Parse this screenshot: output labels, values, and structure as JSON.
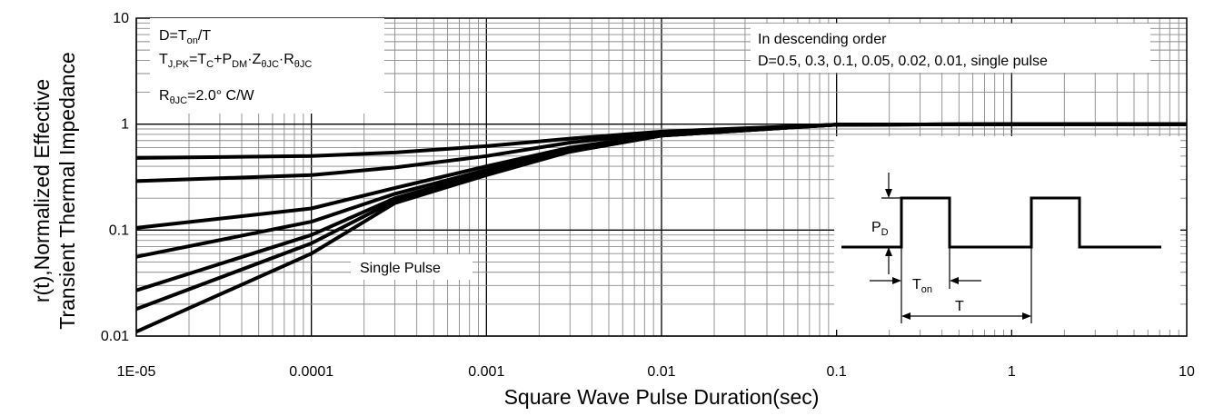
{
  "chart_data": {
    "type": "line",
    "xlabel": "Square Wave Pulse Duration(sec)",
    "ylabel_lines": [
      "r(t),Normalized Effective",
      "Transient Thermal Impedance"
    ],
    "x_scale": "log",
    "y_scale": "log",
    "xlim": [
      1e-05,
      10
    ],
    "ylim": [
      0.01,
      10
    ],
    "x_ticks": [
      {
        "value": 1e-05,
        "label": "1E-05"
      },
      {
        "value": 0.0001,
        "label": "0.0001"
      },
      {
        "value": 0.001,
        "label": "0.001"
      },
      {
        "value": 0.01,
        "label": "0.01"
      },
      {
        "value": 0.1,
        "label": "0.1"
      },
      {
        "value": 1,
        "label": "1"
      },
      {
        "value": 10,
        "label": "10"
      }
    ],
    "y_ticks": [
      {
        "value": 0.01,
        "label": "0.01"
      },
      {
        "value": 0.1,
        "label": "0.1"
      },
      {
        "value": 1,
        "label": "1"
      },
      {
        "value": 10,
        "label": "10"
      }
    ],
    "grid": true,
    "series": [
      {
        "name": "D=0.5",
        "x": [
          1e-05,
          0.0001,
          0.0003,
          0.001,
          0.003,
          0.01,
          0.1,
          1,
          10
        ],
        "y": [
          0.48,
          0.5,
          0.54,
          0.62,
          0.73,
          0.85,
          0.99,
          1.0,
          1.0
        ]
      },
      {
        "name": "D=0.3",
        "x": [
          1e-05,
          0.0001,
          0.0003,
          0.001,
          0.003,
          0.01,
          0.1,
          1,
          10
        ],
        "y": [
          0.29,
          0.33,
          0.39,
          0.5,
          0.67,
          0.83,
          0.99,
          1.0,
          1.0
        ]
      },
      {
        "name": "D=0.1",
        "x": [
          1e-05,
          0.0001,
          0.0003,
          0.001,
          0.003,
          0.01,
          0.1,
          1,
          10
        ],
        "y": [
          0.105,
          0.16,
          0.25,
          0.4,
          0.6,
          0.8,
          0.99,
          1.0,
          1.0
        ]
      },
      {
        "name": "D=0.05",
        "x": [
          1e-05,
          0.0001,
          0.0003,
          0.001,
          0.003,
          0.01,
          0.1,
          1,
          10
        ],
        "y": [
          0.056,
          0.12,
          0.22,
          0.37,
          0.58,
          0.79,
          0.99,
          1.0,
          1.0
        ]
      },
      {
        "name": "D=0.02",
        "x": [
          1e-05,
          0.0001,
          0.0003,
          0.001,
          0.003,
          0.01,
          0.1,
          1,
          10
        ],
        "y": [
          0.027,
          0.09,
          0.2,
          0.35,
          0.56,
          0.78,
          0.99,
          1.0,
          1.0
        ]
      },
      {
        "name": "D=0.01",
        "x": [
          1e-05,
          0.0001,
          0.0003,
          0.001,
          0.003,
          0.01,
          0.1,
          1,
          10
        ],
        "y": [
          0.018,
          0.075,
          0.19,
          0.34,
          0.55,
          0.78,
          0.99,
          1.0,
          1.0
        ]
      },
      {
        "name": "single pulse",
        "x": [
          1e-05,
          0.0001,
          0.0003,
          0.001,
          0.003,
          0.01,
          0.1,
          1,
          10
        ],
        "y": [
          0.011,
          0.06,
          0.18,
          0.33,
          0.55,
          0.78,
          0.99,
          1.0,
          1.0
        ]
      }
    ],
    "annotations": {
      "formula_box": {
        "lines": [
          [
            {
              "t": "D=T",
              "sub": false
            },
            {
              "t": "on",
              "sub": true
            },
            {
              "t": "/T",
              "sub": false
            }
          ],
          [
            {
              "t": "T",
              "sub": false
            },
            {
              "t": "J,PK",
              "sub": true
            },
            {
              "t": "=T",
              "sub": false
            },
            {
              "t": "C",
              "sub": true
            },
            {
              "t": "+P",
              "sub": false
            },
            {
              "t": "DM",
              "sub": true
            },
            {
              "t": "·Z",
              "sub": false
            },
            {
              "t": "θJC",
              "sub": true
            },
            {
              "t": "·R",
              "sub": false
            },
            {
              "t": "θJC",
              "sub": true
            }
          ],
          [
            {
              "t": "R",
              "sub": false
            },
            {
              "t": "θJC",
              "sub": true
            },
            {
              "t": "=2.0°  C/W",
              "sub": false
            }
          ]
        ]
      },
      "order_note": [
        "In descending order",
        "D=0.5, 0.3, 0.1, 0.05, 0.02, 0.01, single pulse"
      ],
      "single_pulse_label": "Single Pulse",
      "waveform": {
        "pd_label_main": "P",
        "pd_label_sub": "D",
        "ton_label_main": "T",
        "ton_label_sub": "on",
        "t_label": "T"
      }
    }
  }
}
